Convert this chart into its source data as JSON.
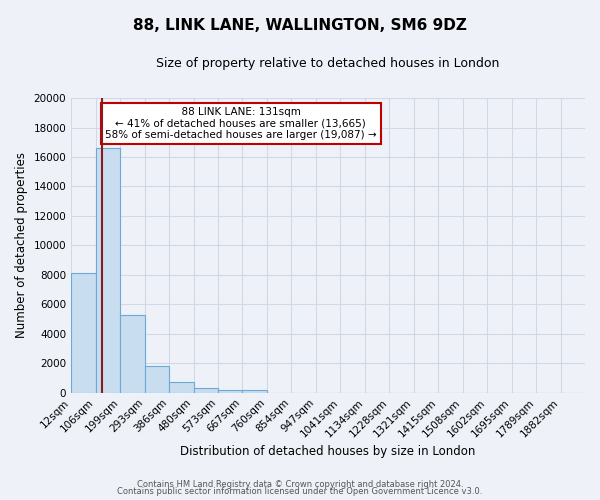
{
  "title1": "88, LINK LANE, WALLINGTON, SM6 9DZ",
  "title2": "Size of property relative to detached houses in London",
  "xlabel": "Distribution of detached houses by size in London",
  "ylabel": "Number of detached properties",
  "categories": [
    "12sqm",
    "106sqm",
    "199sqm",
    "293sqm",
    "386sqm",
    "480sqm",
    "573sqm",
    "667sqm",
    "760sqm",
    "854sqm",
    "947sqm",
    "1041sqm",
    "1134sqm",
    "1228sqm",
    "1321sqm",
    "1415sqm",
    "1508sqm",
    "1602sqm",
    "1695sqm",
    "1789sqm",
    "1882sqm"
  ],
  "bar_values": [
    8100,
    16600,
    5300,
    1800,
    700,
    300,
    175,
    200,
    0,
    0,
    0,
    0,
    0,
    0,
    0,
    0,
    0,
    0,
    0,
    0,
    0
  ],
  "bar_color": "#c9ddf0",
  "bar_edgecolor": "#6aaad4",
  "vline_color": "#8b1a1a",
  "ylim": [
    0,
    20000
  ],
  "yticks": [
    0,
    2000,
    4000,
    6000,
    8000,
    10000,
    12000,
    14000,
    16000,
    18000,
    20000
  ],
  "annotation_title": "88 LINK LANE: 131sqm",
  "annotation_line1": "← 41% of detached houses are smaller (13,665)",
  "annotation_line2": "58% of semi-detached houses are larger (19,087) →",
  "annotation_box_facecolor": "#ffffff",
  "annotation_box_edgecolor": "#c00000",
  "footer1": "Contains HM Land Registry data © Crown copyright and database right 2024.",
  "footer2": "Contains public sector information licensed under the Open Government Licence v3.0.",
  "background_color": "#eef2f8",
  "plot_bg_color": "#eef2f8",
  "grid_color": "#d0d8e8",
  "title1_fontsize": 11,
  "title2_fontsize": 9,
  "xlabel_fontsize": 8.5,
  "ylabel_fontsize": 8.5,
  "tick_fontsize": 7.5,
  "footer_fontsize": 6,
  "ann_fontsize": 7.5
}
